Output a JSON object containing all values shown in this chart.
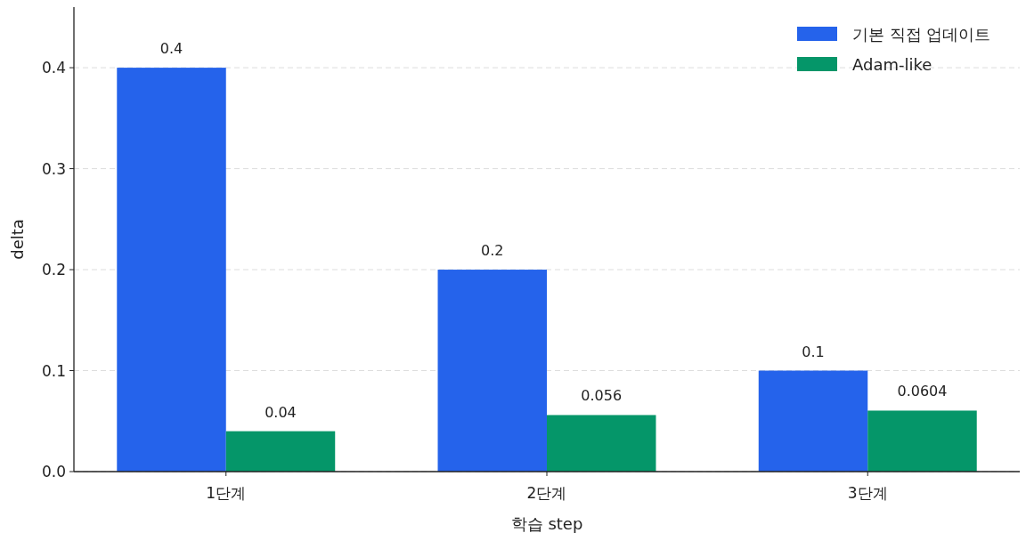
{
  "chart_data": {
    "type": "bar",
    "xlabel": "학습 step",
    "ylabel": "delta",
    "categories": [
      "1단계",
      "2단계",
      "3단계"
    ],
    "series": [
      {
        "name": "기본 직접 업데이트",
        "color": "#2563eb",
        "values": [
          0.4,
          0.2,
          0.1
        ]
      },
      {
        "name": "Adam-like",
        "color": "#059669",
        "values": [
          0.04,
          0.056,
          0.0604
        ]
      }
    ],
    "ylim": [
      0,
      0.46
    ],
    "yticks": [
      {
        "value": 0,
        "label": "0.0"
      },
      0.1,
      0.2,
      0.3,
      0.4
    ],
    "grid": "y",
    "legend": "top right",
    "data_labels": true
  }
}
